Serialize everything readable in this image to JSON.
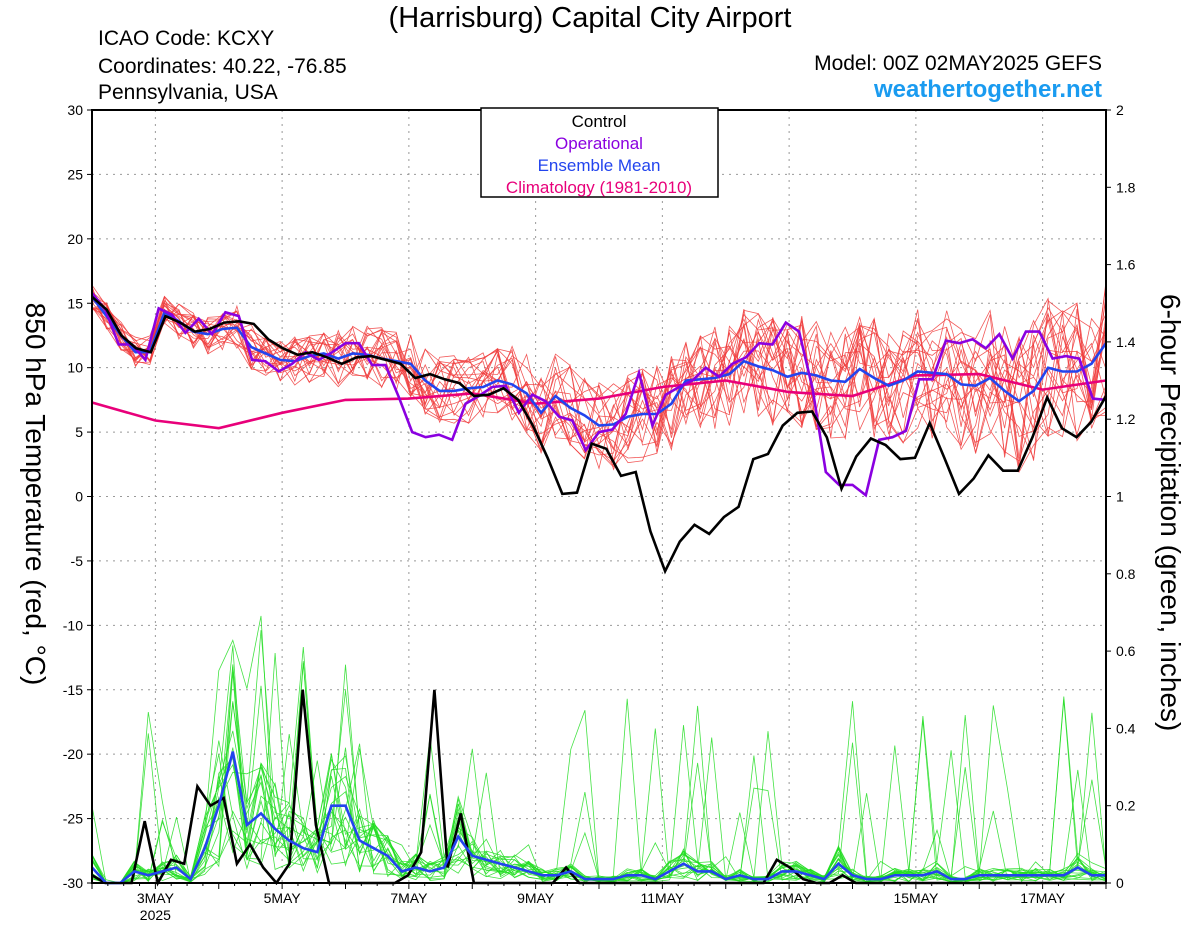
{
  "chart_data": {
    "type": "line",
    "title": "(Harrisburg) Capital City Airport",
    "station": {
      "icao": "ICAO Code: KCXY",
      "coordinates": "Coordinates: 40.22, -76.85",
      "location": "Pennsylvania, USA"
    },
    "model": "Model: 00Z 02MAY2025 GEFS",
    "website": "weathertogether.net",
    "ylabel_left": "850 hPa Temperature (red, °C)",
    "ylabel_right": "6-hour Precipitation (green, inches)",
    "ylim_left": [
      -30,
      30
    ],
    "ylim_right": [
      0,
      2
    ],
    "yticks_left": [
      "30",
      "25",
      "20",
      "15",
      "10",
      "5",
      "0",
      "-5",
      "-10",
      "-15",
      "-20",
      "-25",
      "-30"
    ],
    "yticks_right": [
      "2",
      "1.8",
      "1.6",
      "1.4",
      "1.2",
      "1",
      "0.8",
      "0.6",
      "0.4",
      "0.2",
      "0"
    ],
    "xlim": [
      0,
      16
    ],
    "xticks": [
      {
        "x": 1,
        "label": "3MAY",
        "sublabel": "2025"
      },
      {
        "x": 3,
        "label": "5MAY",
        "sublabel": ""
      },
      {
        "x": 5,
        "label": "7MAY",
        "sublabel": ""
      },
      {
        "x": 7,
        "label": "9MAY",
        "sublabel": ""
      },
      {
        "x": 9,
        "label": "11MAY",
        "sublabel": ""
      },
      {
        "x": 11,
        "label": "13MAY",
        "sublabel": ""
      },
      {
        "x": 13,
        "label": "15MAY",
        "sublabel": ""
      },
      {
        "x": 15,
        "label": "17MAY",
        "sublabel": ""
      }
    ],
    "grid": true,
    "legend_position": "top-center",
    "legend": [
      {
        "label": "Control",
        "color": "#000000"
      },
      {
        "label": "Operational",
        "color": "#8a00e0"
      },
      {
        "label": "Ensemble Mean",
        "color": "#2244ee"
      },
      {
        "label": "Climatology (1981-2010)",
        "color": "#e8007a"
      }
    ],
    "colors": {
      "members_temp": "#f03c3c",
      "members_precip": "#22dd22",
      "control": "#000000",
      "operational": "#8a00e0",
      "mean": "#2244ee",
      "climatology": "#e8007a"
    },
    "temperature_series": {
      "control": [
        15.5,
        14.5,
        12.5,
        11.5,
        11.2,
        14,
        13.5,
        12.8,
        13,
        13.5,
        13.6,
        13.4,
        12.2,
        11.5,
        11,
        11.2,
        10.8,
        10.3,
        10.8,
        10.9,
        10.6,
        10.3,
        9.2,
        9.5,
        9.1,
        8.8,
        7.8,
        7.9,
        8.4,
        7.5,
        5.5,
        3,
        0.2,
        0.3,
        4.1,
        3.7,
        1.6,
        1.9,
        -2.7,
        -5.8,
        -3.5,
        -2.2,
        -2.9,
        -1.6,
        -0.8,
        2.9,
        3.3,
        5.5,
        6.5,
        6.6,
        4.6,
        0.6,
        3.1,
        4.5,
        4,
        2.9,
        3,
        5.7,
        3,
        0.2,
        1.4,
        3.2,
        2,
        2,
        4.6,
        7.7,
        5.3,
        4.6,
        5.8,
        7.8
      ],
      "operational": [
        15.8,
        14.5,
        11.8,
        11.8,
        10.6,
        14.6,
        14.1,
        12.7,
        13.8,
        12.6,
        14.3,
        14,
        10.6,
        10.5,
        9.7,
        10.3,
        11.2,
        10.6,
        11.2,
        11.9,
        11.9,
        10.2,
        10.2,
        7.7,
        5,
        4.6,
        4.8,
        4.4,
        7.2,
        7.8,
        8.5,
        8.6,
        6.5,
        7.9,
        7.4,
        6.2,
        5.9,
        3.6,
        5,
        5.2,
        6.4,
        9.6,
        5.5,
        7.9,
        8.5,
        9,
        10,
        9.3,
        10.3,
        10.8,
        11.9,
        11.8,
        13.5,
        12.8,
        8.4,
        1.9,
        0.9,
        0.9,
        0.1,
        4.4,
        4.6,
        5.1,
        9.1,
        9.1,
        12.1,
        11.9,
        12.2,
        11.5,
        12.6,
        10.7,
        12.8,
        12.8,
        10.7,
        10.9,
        10.7,
        7.6,
        7.5
      ],
      "mean": [
        15.5,
        14,
        12.5,
        11.2,
        11.2,
        14.3,
        13.6,
        12.8,
        12.6,
        13,
        13.1,
        11.6,
        11.1,
        10.6,
        10.5,
        10.9,
        11.1,
        10.7,
        11.1,
        11,
        10.7,
        10.5,
        10.3,
        9,
        8.2,
        8.2,
        8.4,
        8.5,
        9,
        8.7,
        8,
        6.5,
        7.8,
        6.9,
        6.3,
        5.5,
        5.6,
        6.2,
        6.4,
        6.4,
        7.2,
        9,
        9.1,
        9.2,
        9.5,
        10.5,
        10.1,
        9.8,
        9.3,
        9.6,
        9.4,
        9,
        8.9,
        9.9,
        9.2,
        8.6,
        9,
        9.7,
        9.6,
        9.5,
        8.7,
        8.6,
        9.2,
        8.2,
        7.4,
        8.2,
        10,
        9.7,
        9.7,
        10.3,
        11.9
      ]
    },
    "climatology": {
      "x": [
        0,
        1,
        2,
        3,
        4,
        5,
        6,
        7,
        8,
        9,
        10,
        11,
        12,
        13,
        14,
        15,
        16
      ],
      "values": [
        7.3,
        5.9,
        5.3,
        6.5,
        7.5,
        7.6,
        8,
        7.2,
        7.6,
        8.5,
        9,
        8.1,
        7.8,
        9.4,
        9.5,
        8.3,
        9
      ]
    },
    "precipitation_series": {
      "control": [
        0.02,
        0,
        0,
        0,
        0.16,
        0,
        0.06,
        0.05,
        0.25,
        0.2,
        0.22,
        0.05,
        0.1,
        0.04,
        0,
        0.05,
        0.5,
        0.15,
        0,
        0,
        0,
        0,
        0,
        0,
        0.02,
        0.08,
        0.5,
        0.04,
        0.18,
        0,
        0,
        0,
        0,
        0,
        0,
        0,
        0.04,
        0,
        0,
        0,
        0,
        0,
        0,
        0,
        0,
        0,
        0,
        0,
        0,
        0,
        0,
        0,
        0.06,
        0.04,
        0.01,
        0,
        0,
        0.02,
        0,
        0,
        0,
        0,
        0,
        0,
        0,
        0,
        0,
        0,
        0,
        0,
        0,
        0,
        0,
        0,
        0,
        0,
        0,
        0
      ],
      "mean": [
        0.04,
        0,
        0,
        0.03,
        0.02,
        0.03,
        0.04,
        0.01,
        0.09,
        0.2,
        0.34,
        0.15,
        0.18,
        0.14,
        0.11,
        0.09,
        0.08,
        0.2,
        0.2,
        0.11,
        0.09,
        0.07,
        0.03,
        0.04,
        0.03,
        0.04,
        0.12,
        0.07,
        0.06,
        0.05,
        0.04,
        0.03,
        0.02,
        0.02,
        0.03,
        0.01,
        0.01,
        0.01,
        0.02,
        0.02,
        0.01,
        0.03,
        0.05,
        0.03,
        0.03,
        0.01,
        0.02,
        0.01,
        0.01,
        0.03,
        0.03,
        0.02,
        0.01,
        0.05,
        0.02,
        0.01,
        0.01,
        0.02,
        0.02,
        0.02,
        0.03,
        0.01,
        0.01,
        0.02,
        0.02,
        0.02,
        0.02,
        0.02,
        0.02,
        0.02,
        0.04,
        0.02,
        0.02
      ]
    }
  }
}
